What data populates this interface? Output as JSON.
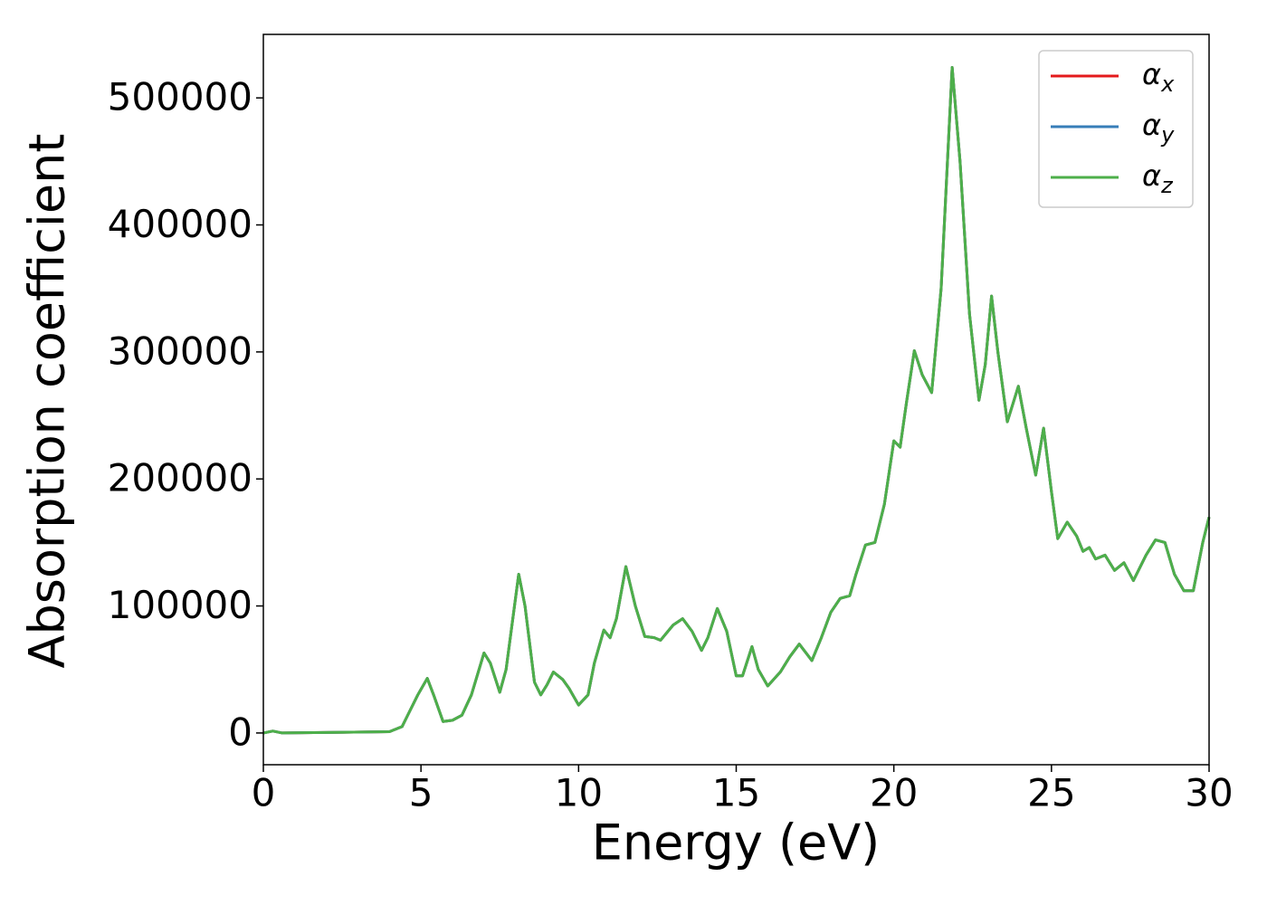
{
  "chart_data": {
    "type": "line",
    "xlabel": "Energy (eV)",
    "ylabel": "Absorption coefficient",
    "x": [
      0,
      0.3,
      0.6,
      4.0,
      4.4,
      4.6,
      4.9,
      5.2,
      5.4,
      5.7,
      6.0,
      6.3,
      6.6,
      7.0,
      7.2,
      7.5,
      7.7,
      8.1,
      8.3,
      8.6,
      8.8,
      9.0,
      9.2,
      9.5,
      9.7,
      10.0,
      10.3,
      10.5,
      10.8,
      11.0,
      11.2,
      11.5,
      11.8,
      12.1,
      12.4,
      12.6,
      13.0,
      13.3,
      13.6,
      13.9,
      14.1,
      14.4,
      14.7,
      15.0,
      15.2,
      15.5,
      15.7,
      16.0,
      16.4,
      16.7,
      17.0,
      17.4,
      17.7,
      18.0,
      18.3,
      18.6,
      18.8,
      19.1,
      19.4,
      19.7,
      20.0,
      20.2,
      20.4,
      20.65,
      20.9,
      21.2,
      21.5,
      21.85,
      22.1,
      22.4,
      22.7,
      22.9,
      23.1,
      23.3,
      23.6,
      23.95,
      24.2,
      24.5,
      24.75,
      25.0,
      25.2,
      25.5,
      25.8,
      26.0,
      26.2,
      26.4,
      26.7,
      27.0,
      27.3,
      27.6,
      28.0,
      28.3,
      28.6,
      28.9,
      29.2,
      29.5,
      29.8,
      30.0
    ],
    "series": [
      {
        "name": "αx",
        "color": "#e41a1c",
        "values": [
          0,
          1500,
          0,
          1000,
          5000,
          15000,
          30000,
          43000,
          30000,
          9000,
          10000,
          14000,
          30000,
          63000,
          55000,
          32000,
          50000,
          125000,
          100000,
          40000,
          30000,
          38000,
          48000,
          42000,
          35000,
          22000,
          30000,
          55000,
          81000,
          75000,
          90000,
          131000,
          100000,
          76000,
          75000,
          73000,
          85000,
          90000,
          80000,
          65000,
          75000,
          98000,
          80000,
          45000,
          45000,
          68000,
          50000,
          37000,
          48000,
          60000,
          70000,
          57000,
          75000,
          95000,
          106000,
          108000,
          125000,
          148000,
          150000,
          180000,
          230000,
          225000,
          260000,
          301000,
          282000,
          268000,
          350000,
          524000,
          450000,
          330000,
          262000,
          290000,
          344000,
          300000,
          245000,
          273000,
          240000,
          203000,
          240000,
          190000,
          153000,
          166000,
          155000,
          143000,
          146000,
          137000,
          140000,
          128000,
          134000,
          120000,
          140000,
          152000,
          150000,
          125000,
          112000,
          112000,
          150000,
          170000
        ]
      },
      {
        "name": "αy",
        "color": "#377eb8",
        "values": [
          0,
          1500,
          0,
          1000,
          5000,
          15000,
          30000,
          43000,
          30000,
          9000,
          10000,
          14000,
          30000,
          63000,
          55000,
          32000,
          50000,
          125000,
          100000,
          40000,
          30000,
          38000,
          48000,
          42000,
          35000,
          22000,
          30000,
          55000,
          81000,
          75000,
          90000,
          131000,
          100000,
          76000,
          75000,
          73000,
          85000,
          90000,
          80000,
          65000,
          75000,
          98000,
          80000,
          45000,
          45000,
          68000,
          50000,
          37000,
          48000,
          60000,
          70000,
          57000,
          75000,
          95000,
          106000,
          108000,
          125000,
          148000,
          150000,
          180000,
          230000,
          225000,
          260000,
          301000,
          282000,
          268000,
          350000,
          524000,
          450000,
          330000,
          262000,
          290000,
          344000,
          300000,
          245000,
          273000,
          240000,
          203000,
          240000,
          190000,
          153000,
          166000,
          155000,
          143000,
          146000,
          137000,
          140000,
          128000,
          134000,
          120000,
          140000,
          152000,
          150000,
          125000,
          112000,
          112000,
          150000,
          170000
        ]
      },
      {
        "name": "αz",
        "color": "#4daf4a",
        "values": [
          0,
          1500,
          0,
          1000,
          5000,
          15000,
          30000,
          43000,
          30000,
          9000,
          10000,
          14000,
          30000,
          63000,
          55000,
          32000,
          50000,
          125000,
          100000,
          40000,
          30000,
          38000,
          48000,
          42000,
          35000,
          22000,
          30000,
          55000,
          81000,
          75000,
          90000,
          131000,
          100000,
          76000,
          75000,
          73000,
          85000,
          90000,
          80000,
          65000,
          75000,
          98000,
          80000,
          45000,
          45000,
          68000,
          50000,
          37000,
          48000,
          60000,
          70000,
          57000,
          75000,
          95000,
          106000,
          108000,
          125000,
          148000,
          150000,
          180000,
          230000,
          225000,
          260000,
          301000,
          282000,
          268000,
          350000,
          524000,
          450000,
          330000,
          262000,
          290000,
          344000,
          300000,
          245000,
          273000,
          240000,
          203000,
          240000,
          190000,
          153000,
          166000,
          155000,
          143000,
          146000,
          137000,
          140000,
          128000,
          134000,
          120000,
          140000,
          152000,
          150000,
          125000,
          112000,
          112000,
          150000,
          170000
        ]
      }
    ],
    "xlim": [
      0,
      30
    ],
    "xticks": [
      0,
      5,
      10,
      15,
      20,
      25,
      30
    ],
    "ylim": [
      -25000,
      550000
    ],
    "yticks": [
      0,
      100000,
      200000,
      300000,
      400000,
      500000
    ],
    "grid": false,
    "legend": "upper right"
  }
}
